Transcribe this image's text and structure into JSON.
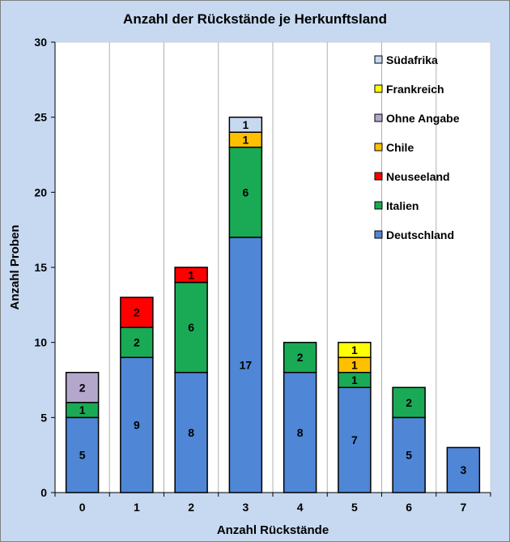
{
  "chart_data": {
    "type": "bar",
    "stacked": true,
    "title": "Anzahl der Rückstände je Herkunftsland",
    "xlabel": "Anzahl Rückstände",
    "ylabel": "Anzahl Proben",
    "categories": [
      "0",
      "1",
      "2",
      "3",
      "4",
      "5",
      "6",
      "7"
    ],
    "ylim": [
      0,
      30
    ],
    "yticks": [
      "0",
      "5",
      "10",
      "15",
      "20",
      "25",
      "30"
    ],
    "grid": "vertical",
    "legend_position": "top-right",
    "series": [
      {
        "name": "Deutschland",
        "color": "#4f86d6",
        "values": [
          5,
          9,
          8,
          17,
          8,
          7,
          5,
          3
        ]
      },
      {
        "name": "Italien",
        "color": "#1aaa55",
        "values": [
          1,
          2,
          6,
          6,
          2,
          1,
          2,
          0
        ]
      },
      {
        "name": "Neuseeland",
        "color": "#ff0000",
        "values": [
          0,
          2,
          1,
          0,
          0,
          0,
          0,
          0
        ]
      },
      {
        "name": "Chile",
        "color": "#ffc000",
        "values": [
          0,
          0,
          0,
          1,
          0,
          1,
          0,
          0
        ]
      },
      {
        "name": "Ohne Angabe",
        "color": "#b4a7cc",
        "values": [
          2,
          0,
          0,
          0,
          0,
          0,
          0,
          0
        ]
      },
      {
        "name": "Frankreich",
        "color": "#ffff00",
        "values": [
          0,
          0,
          0,
          0,
          0,
          1,
          0,
          0
        ]
      },
      {
        "name": "Südafrika",
        "color": "#c6d9f1",
        "values": [
          0,
          0,
          0,
          1,
          0,
          0,
          0,
          0
        ]
      }
    ],
    "legend_order": [
      "Südafrika",
      "Frankreich",
      "Ohne Angabe",
      "Chile",
      "Neuseeland",
      "Italien",
      "Deutschland"
    ],
    "colors": {
      "background": "#c6d9f1",
      "plot_area": "#ffffff",
      "grid": "#b0b0b0"
    }
  }
}
